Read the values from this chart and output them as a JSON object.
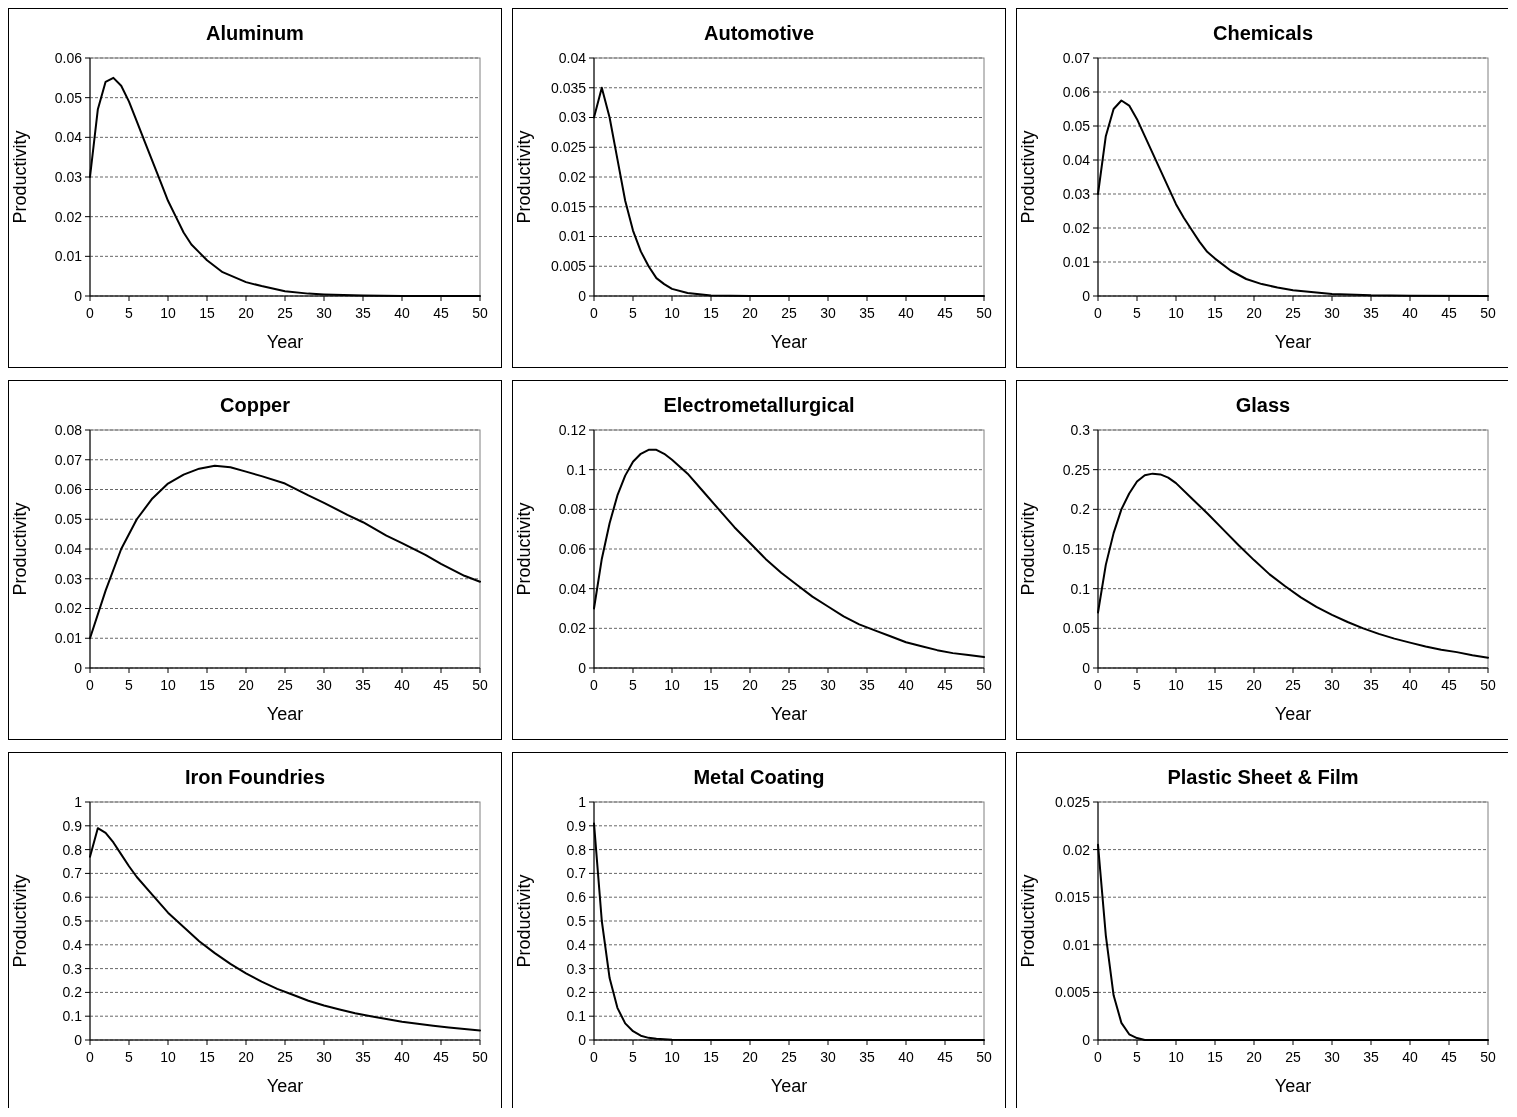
{
  "chart_data": [
    {
      "type": "line",
      "title": "Aluminum",
      "xlabel": "Year",
      "ylabel": "Productivity",
      "x": [
        0,
        1,
        2,
        3,
        4,
        5,
        6,
        7,
        8,
        9,
        10,
        11,
        12,
        13,
        14,
        15,
        17,
        20,
        22,
        25,
        28,
        30,
        35,
        40,
        50
      ],
      "values": [
        0.03,
        0.047,
        0.054,
        0.055,
        0.053,
        0.049,
        0.044,
        0.039,
        0.034,
        0.029,
        0.024,
        0.02,
        0.016,
        0.013,
        0.011,
        0.009,
        0.006,
        0.0035,
        0.0025,
        0.0012,
        0.0006,
        0.0004,
        0.0001,
        0,
        0
      ],
      "color": "#000000",
      "xlim": [
        0,
        50
      ],
      "xticks": [
        0,
        5,
        10,
        15,
        20,
        25,
        30,
        35,
        40,
        45,
        50
      ],
      "ylim": [
        0,
        0.06
      ],
      "yticks": [
        0,
        0.01,
        0.02,
        0.03,
        0.04,
        0.05,
        0.06
      ],
      "grid": "y",
      "marker": "none",
      "line_style": "solid"
    },
    {
      "type": "line",
      "title": "Automotive",
      "xlabel": "Year",
      "ylabel": "Productivity",
      "x": [
        0,
        1,
        2,
        3,
        4,
        5,
        6,
        7,
        8,
        9,
        10,
        12,
        15,
        20,
        50
      ],
      "values": [
        0.03,
        0.035,
        0.03,
        0.023,
        0.016,
        0.011,
        0.0075,
        0.005,
        0.003,
        0.002,
        0.0012,
        0.0005,
        0.0001,
        0,
        0
      ],
      "color": "#000000",
      "xlim": [
        0,
        50
      ],
      "xticks": [
        0,
        5,
        10,
        15,
        20,
        25,
        30,
        35,
        40,
        45,
        50
      ],
      "ylim": [
        0,
        0.04
      ],
      "yticks": [
        0,
        0.005,
        0.01,
        0.015,
        0.02,
        0.025,
        0.03,
        0.035,
        0.04
      ],
      "grid": "y",
      "marker": "none",
      "line_style": "solid"
    },
    {
      "type": "line",
      "title": "Chemicals",
      "xlabel": "Year",
      "ylabel": "Productivity",
      "x": [
        0,
        1,
        2,
        3,
        4,
        5,
        6,
        7,
        8,
        9,
        10,
        11,
        12,
        13,
        14,
        15,
        17,
        19,
        21,
        23,
        25,
        30,
        35,
        40,
        50
      ],
      "values": [
        0.03,
        0.047,
        0.055,
        0.0575,
        0.056,
        0.052,
        0.047,
        0.042,
        0.037,
        0.032,
        0.027,
        0.023,
        0.0195,
        0.016,
        0.013,
        0.011,
        0.0075,
        0.005,
        0.0035,
        0.0025,
        0.0017,
        0.0006,
        0.0002,
        0.0001,
        0
      ],
      "color": "#000000",
      "xlim": [
        0,
        50
      ],
      "xticks": [
        0,
        5,
        10,
        15,
        20,
        25,
        30,
        35,
        40,
        45,
        50
      ],
      "ylim": [
        0,
        0.07
      ],
      "yticks": [
        0,
        0.01,
        0.02,
        0.03,
        0.04,
        0.05,
        0.06,
        0.07
      ],
      "grid": "y",
      "marker": "none",
      "line_style": "solid"
    },
    {
      "type": "line",
      "title": "Copper",
      "xlabel": "Year",
      "ylabel": "Productivity",
      "x": [
        0,
        2,
        4,
        6,
        8,
        10,
        12,
        14,
        16,
        18,
        20,
        22,
        25,
        28,
        30,
        33,
        35,
        38,
        40,
        43,
        45,
        48,
        50
      ],
      "values": [
        0.01,
        0.026,
        0.04,
        0.05,
        0.057,
        0.062,
        0.065,
        0.067,
        0.068,
        0.0675,
        0.066,
        0.0645,
        0.062,
        0.058,
        0.0555,
        0.0515,
        0.049,
        0.0445,
        0.042,
        0.038,
        0.035,
        0.031,
        0.029
      ],
      "color": "#000000",
      "xlim": [
        0,
        50
      ],
      "xticks": [
        0,
        5,
        10,
        15,
        20,
        25,
        30,
        35,
        40,
        45,
        50
      ],
      "ylim": [
        0,
        0.08
      ],
      "yticks": [
        0,
        0.01,
        0.02,
        0.03,
        0.04,
        0.05,
        0.06,
        0.07,
        0.08
      ],
      "grid": "y",
      "marker": "none",
      "line_style": "solid"
    },
    {
      "type": "line",
      "title": "Electrometallurgical",
      "xlabel": "Year",
      "ylabel": "Productivity",
      "x": [
        0,
        1,
        2,
        3,
        4,
        5,
        6,
        7,
        8,
        9,
        10,
        12,
        14,
        16,
        18,
        20,
        22,
        24,
        26,
        28,
        30,
        32,
        34,
        36,
        38,
        40,
        42,
        44,
        46,
        48,
        50
      ],
      "values": [
        0.03,
        0.055,
        0.073,
        0.087,
        0.097,
        0.104,
        0.108,
        0.11,
        0.11,
        0.108,
        0.105,
        0.098,
        0.089,
        0.08,
        0.071,
        0.063,
        0.055,
        0.048,
        0.042,
        0.036,
        0.031,
        0.026,
        0.022,
        0.019,
        0.016,
        0.013,
        0.011,
        0.009,
        0.0075,
        0.0065,
        0.0055
      ],
      "color": "#000000",
      "xlim": [
        0,
        50
      ],
      "xticks": [
        0,
        5,
        10,
        15,
        20,
        25,
        30,
        35,
        40,
        45,
        50
      ],
      "ylim": [
        0,
        0.12
      ],
      "yticks": [
        0,
        0.02,
        0.04,
        0.06,
        0.08,
        0.1,
        0.12
      ],
      "grid": "y",
      "marker": "none",
      "line_style": "solid"
    },
    {
      "type": "line",
      "title": "Glass",
      "xlabel": "Year",
      "ylabel": "Productivity",
      "x": [
        0,
        1,
        2,
        3,
        4,
        5,
        6,
        7,
        8,
        9,
        10,
        12,
        14,
        16,
        18,
        20,
        22,
        24,
        26,
        28,
        30,
        32,
        34,
        36,
        38,
        40,
        42,
        44,
        46,
        48,
        50
      ],
      "values": [
        0.07,
        0.13,
        0.17,
        0.2,
        0.22,
        0.235,
        0.243,
        0.245,
        0.244,
        0.24,
        0.233,
        0.214,
        0.195,
        0.175,
        0.155,
        0.136,
        0.118,
        0.103,
        0.089,
        0.077,
        0.067,
        0.058,
        0.05,
        0.043,
        0.037,
        0.032,
        0.027,
        0.023,
        0.02,
        0.016,
        0.013
      ],
      "color": "#000000",
      "xlim": [
        0,
        50
      ],
      "xticks": [
        0,
        5,
        10,
        15,
        20,
        25,
        30,
        35,
        40,
        45,
        50
      ],
      "ylim": [
        0,
        0.3
      ],
      "yticks": [
        0,
        0.05,
        0.1,
        0.15,
        0.2,
        0.25,
        0.3
      ],
      "grid": "y",
      "marker": "none",
      "line_style": "solid"
    },
    {
      "type": "line",
      "title": "Iron Foundries",
      "xlabel": "Year",
      "ylabel": "Productivity",
      "x": [
        0,
        1,
        2,
        3,
        4,
        5,
        6,
        8,
        10,
        12,
        14,
        16,
        18,
        20,
        22,
        24,
        26,
        28,
        30,
        32,
        34,
        36,
        38,
        40,
        42,
        44,
        46,
        48,
        50
      ],
      "values": [
        0.77,
        0.89,
        0.87,
        0.83,
        0.78,
        0.73,
        0.685,
        0.61,
        0.535,
        0.475,
        0.415,
        0.365,
        0.32,
        0.28,
        0.245,
        0.215,
        0.19,
        0.165,
        0.145,
        0.128,
        0.112,
        0.1,
        0.088,
        0.077,
        0.068,
        0.06,
        0.053,
        0.046,
        0.04
      ],
      "color": "#000000",
      "xlim": [
        0,
        50
      ],
      "xticks": [
        0,
        5,
        10,
        15,
        20,
        25,
        30,
        35,
        40,
        45,
        50
      ],
      "ylim": [
        0,
        1
      ],
      "yticks": [
        0,
        0.1,
        0.2,
        0.3,
        0.4,
        0.5,
        0.6,
        0.7,
        0.8,
        0.9,
        1
      ],
      "grid": "y",
      "marker": "none",
      "line_style": "solid"
    },
    {
      "type": "line",
      "title": "Metal Coating",
      "xlabel": "Year",
      "ylabel": "Productivity",
      "x": [
        0,
        1,
        2,
        3,
        4,
        5,
        6,
        7,
        8,
        10,
        15,
        50
      ],
      "values": [
        0.91,
        0.5,
        0.26,
        0.135,
        0.07,
        0.037,
        0.018,
        0.009,
        0.005,
        0.001,
        0,
        0
      ],
      "color": "#000000",
      "xlim": [
        0,
        50
      ],
      "xticks": [
        0,
        5,
        10,
        15,
        20,
        25,
        30,
        35,
        40,
        45,
        50
      ],
      "ylim": [
        0,
        1
      ],
      "yticks": [
        0,
        0.1,
        0.2,
        0.3,
        0.4,
        0.5,
        0.6,
        0.7,
        0.8,
        0.9,
        1
      ],
      "grid": "y",
      "marker": "none",
      "line_style": "solid"
    },
    {
      "type": "line",
      "title": "Plastic Sheet & Film",
      "xlabel": "Year",
      "ylabel": "Productivity",
      "x": [
        0,
        1,
        2,
        3,
        4,
        5,
        6,
        10,
        50
      ],
      "values": [
        0.0205,
        0.011,
        0.0047,
        0.0018,
        0.0006,
        0.0002,
        0,
        0,
        0
      ],
      "color": "#000000",
      "xlim": [
        0,
        50
      ],
      "xticks": [
        0,
        5,
        10,
        15,
        20,
        25,
        30,
        35,
        40,
        45,
        50
      ],
      "ylim": [
        0,
        0.025
      ],
      "yticks": [
        0,
        0.005,
        0.01,
        0.015,
        0.02,
        0.025
      ],
      "grid": "y",
      "marker": "none",
      "line_style": "solid"
    }
  ]
}
